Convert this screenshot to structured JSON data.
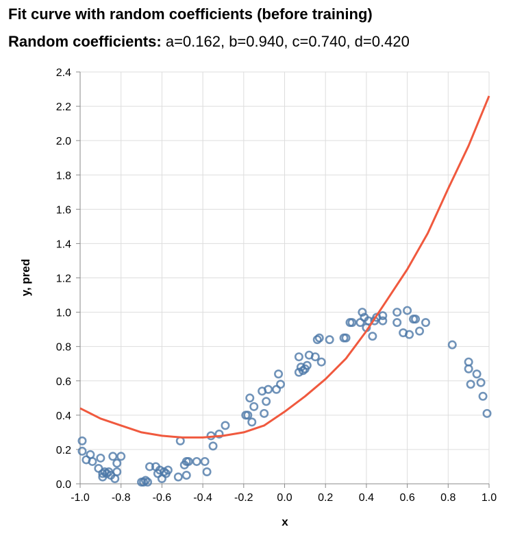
{
  "title": "Fit curve with random coefficients (before training)",
  "subtitle_label": "Random coefficients:",
  "subtitle_value": "a=0.162, b=0.940, c=0.740, d=0.420",
  "chart_data": {
    "type": "scatter",
    "title": "Fit curve with random coefficients (before training)",
    "xlabel": "x",
    "ylabel": "y, pred",
    "xlim": [
      -1.0,
      1.0
    ],
    "ylim": [
      0.0,
      2.4
    ],
    "x_ticks": [
      -1.0,
      -0.8,
      -0.6,
      -0.4,
      -0.2,
      0.0,
      0.2,
      0.4,
      0.6,
      0.8,
      1.0
    ],
    "x_tick_labels": [
      "-1.0",
      "-0.8",
      "-0.6",
      "-0.4",
      "-0.2",
      "0.0",
      "0.2",
      "0.4",
      "0.6",
      "0.8",
      "1.0"
    ],
    "y_ticks": [
      0.0,
      0.2,
      0.4,
      0.6,
      0.8,
      1.0,
      1.2,
      1.4,
      1.6,
      1.8,
      2.0,
      2.2,
      2.4
    ],
    "y_tick_labels": [
      "0.0",
      "0.2",
      "0.4",
      "0.6",
      "0.8",
      "1.0",
      "1.2",
      "1.4",
      "1.6",
      "1.8",
      "2.0",
      "2.2",
      "2.4"
    ],
    "grid": true,
    "colors": {
      "points": "#4c78a8",
      "curve": "#f0593e",
      "grid": "#dddddd"
    },
    "coefficients": {
      "a": 0.162,
      "b": 0.94,
      "c": 0.74,
      "d": 0.42
    },
    "series": [
      {
        "type": "scatter",
        "points": [
          [
            -0.99,
            0.25
          ],
          [
            -0.99,
            0.19
          ],
          [
            -0.97,
            0.14
          ],
          [
            -0.95,
            0.17
          ],
          [
            -0.94,
            0.13
          ],
          [
            -0.91,
            0.09
          ],
          [
            -0.9,
            0.15
          ],
          [
            -0.89,
            0.06
          ],
          [
            -0.89,
            0.04
          ],
          [
            -0.88,
            0.07
          ],
          [
            -0.87,
            0.06
          ],
          [
            -0.86,
            0.07
          ],
          [
            -0.85,
            0.05
          ],
          [
            -0.84,
            0.16
          ],
          [
            -0.83,
            0.03
          ],
          [
            -0.82,
            0.07
          ],
          [
            -0.82,
            0.12
          ],
          [
            -0.8,
            0.16
          ],
          [
            -0.7,
            0.01
          ],
          [
            -0.69,
            0.01
          ],
          [
            -0.68,
            0.02
          ],
          [
            -0.67,
            0.01
          ],
          [
            -0.66,
            0.1
          ],
          [
            -0.63,
            0.1
          ],
          [
            -0.62,
            0.06
          ],
          [
            -0.61,
            0.08
          ],
          [
            -0.6,
            0.03
          ],
          [
            -0.59,
            0.07
          ],
          [
            -0.58,
            0.06
          ],
          [
            -0.57,
            0.08
          ],
          [
            -0.52,
            0.04
          ],
          [
            -0.51,
            0.25
          ],
          [
            -0.49,
            0.11
          ],
          [
            -0.48,
            0.05
          ],
          [
            -0.48,
            0.13
          ],
          [
            -0.47,
            0.13
          ],
          [
            -0.43,
            0.13
          ],
          [
            -0.39,
            0.13
          ],
          [
            -0.38,
            0.07
          ],
          [
            -0.36,
            0.28
          ],
          [
            -0.35,
            0.22
          ],
          [
            -0.32,
            0.29
          ],
          [
            -0.29,
            0.34
          ],
          [
            -0.19,
            0.4
          ],
          [
            -0.18,
            0.4
          ],
          [
            -0.17,
            0.5
          ],
          [
            -0.16,
            0.36
          ],
          [
            -0.15,
            0.45
          ],
          [
            -0.11,
            0.54
          ],
          [
            -0.1,
            0.41
          ],
          [
            -0.09,
            0.48
          ],
          [
            -0.08,
            0.55
          ],
          [
            -0.04,
            0.55
          ],
          [
            -0.03,
            0.64
          ],
          [
            -0.02,
            0.58
          ],
          [
            0.07,
            0.74
          ],
          [
            0.07,
            0.65
          ],
          [
            0.08,
            0.68
          ],
          [
            0.09,
            0.66
          ],
          [
            0.1,
            0.67
          ],
          [
            0.11,
            0.69
          ],
          [
            0.12,
            0.75
          ],
          [
            0.15,
            0.74
          ],
          [
            0.16,
            0.84
          ],
          [
            0.17,
            0.85
          ],
          [
            0.18,
            0.71
          ],
          [
            0.22,
            0.84
          ],
          [
            0.29,
            0.85
          ],
          [
            0.3,
            0.85
          ],
          [
            0.32,
            0.94
          ],
          [
            0.33,
            0.94
          ],
          [
            0.37,
            0.94
          ],
          [
            0.38,
            1.0
          ],
          [
            0.39,
            0.97
          ],
          [
            0.4,
            0.91
          ],
          [
            0.41,
            0.95
          ],
          [
            0.43,
            0.86
          ],
          [
            0.44,
            0.95
          ],
          [
            0.45,
            0.97
          ],
          [
            0.48,
            0.98
          ],
          [
            0.48,
            0.95
          ],
          [
            0.55,
            1.0
          ],
          [
            0.55,
            0.94
          ],
          [
            0.58,
            0.88
          ],
          [
            0.6,
            1.01
          ],
          [
            0.61,
            0.87
          ],
          [
            0.63,
            0.96
          ],
          [
            0.64,
            0.96
          ],
          [
            0.66,
            0.89
          ],
          [
            0.69,
            0.94
          ],
          [
            0.82,
            0.81
          ],
          [
            0.9,
            0.71
          ],
          [
            0.9,
            0.67
          ],
          [
            0.91,
            0.58
          ],
          [
            0.94,
            0.64
          ],
          [
            0.96,
            0.59
          ],
          [
            0.97,
            0.51
          ],
          [
            0.99,
            0.41
          ]
        ]
      },
      {
        "type": "line",
        "x": [
          -1.0,
          -0.9,
          -0.8,
          -0.7,
          -0.6,
          -0.5,
          -0.4,
          -0.3,
          -0.2,
          -0.1,
          0.0,
          0.1,
          0.2,
          0.3,
          0.4,
          0.5,
          0.6,
          0.7,
          0.8,
          0.9,
          1.0
        ],
        "y": [
          0.44,
          0.38,
          0.34,
          0.3,
          0.28,
          0.27,
          0.27,
          0.28,
          0.3,
          0.34,
          0.42,
          0.51,
          0.61,
          0.73,
          0.89,
          1.07,
          1.25,
          1.46,
          1.72,
          1.97,
          2.26
        ]
      }
    ]
  }
}
